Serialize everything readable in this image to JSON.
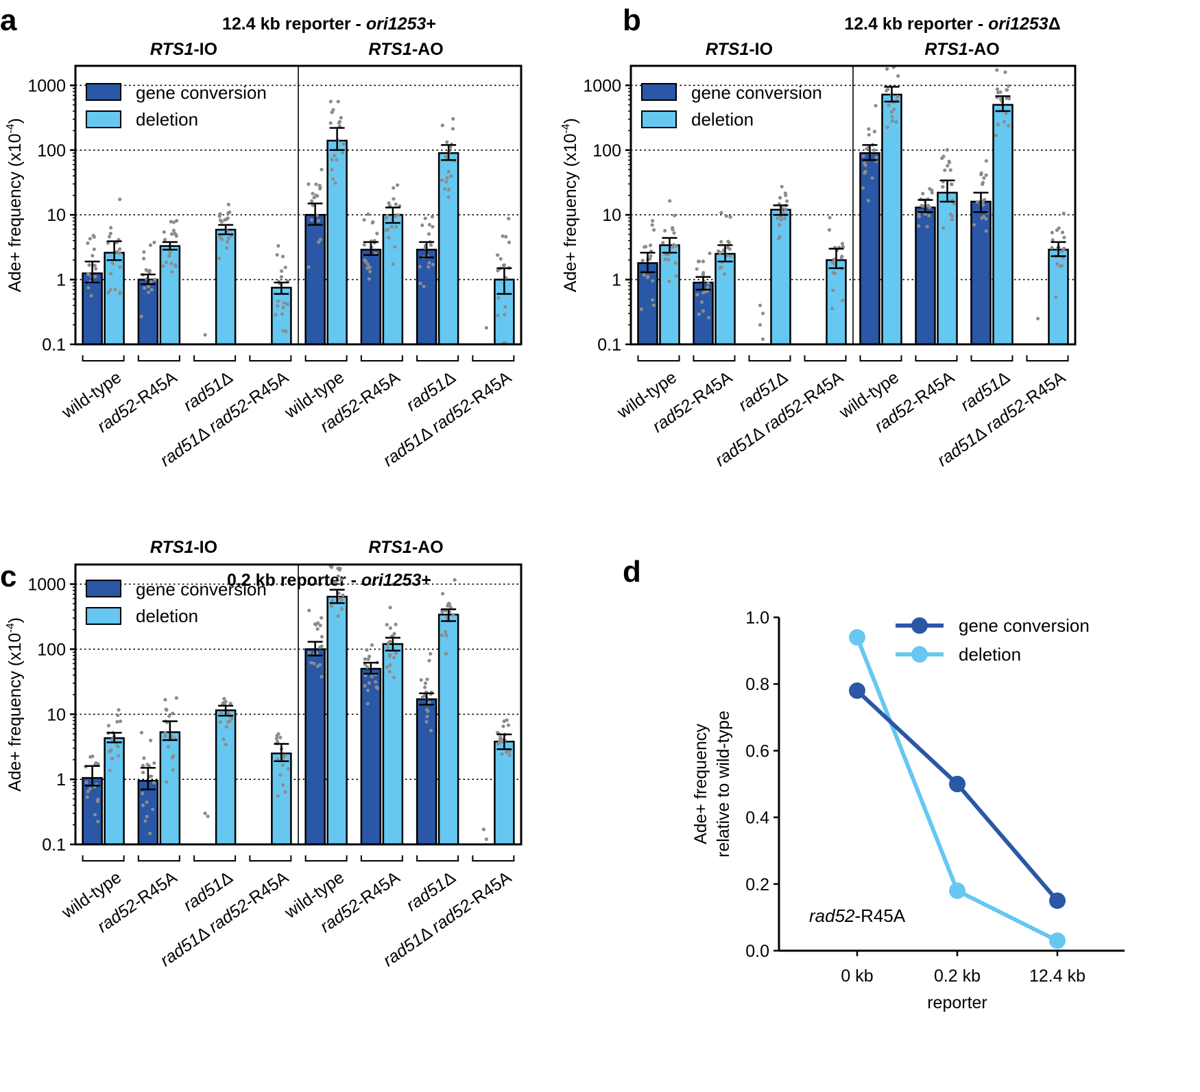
{
  "colors": {
    "gene_conversion": "#2a57a6",
    "deletion": "#66c8f0",
    "points": "#8c8c8c",
    "gridline": "#000000"
  },
  "chart_data": [
    {
      "panel": "a",
      "type": "bar",
      "title": "12.4 kb reporter - ori1253+",
      "title_plain": "12.4 kb reporter - ",
      "title_italic": "ori1253",
      "title_suffix": "+",
      "yscale": "log",
      "ylim": [
        0.1,
        2000
      ],
      "yticks": [
        "1000",
        "100",
        "10",
        "1",
        "0.1"
      ],
      "ylabel": "Ade+ frequency (x10",
      "ylabel_exp": "-4",
      "ylabel_close": ")",
      "legend": [
        "gene conversion",
        "deletion"
      ],
      "groups": [
        {
          "label_bold_italic": "RTS1",
          "label_bold": "-IO"
        },
        {
          "label_bold_italic": "RTS1",
          "label_bold": "-AO"
        }
      ],
      "categories": [
        {
          "it1": "",
          "tx1": "wild-type",
          "it2": "",
          "tx2": ""
        },
        {
          "it1": "rad52",
          "tx1": "-R45A",
          "it2": "",
          "tx2": ""
        },
        {
          "it1": "rad51",
          "tx1": "Δ",
          "it2": "",
          "tx2": ""
        },
        {
          "it1": "rad51",
          "tx1": "Δ ",
          "it2": "rad52",
          "tx2": "-R45A"
        },
        {
          "it1": "",
          "tx1": "wild-type",
          "it2": "",
          "tx2": ""
        },
        {
          "it1": "rad52",
          "tx1": "-R45A",
          "it2": "",
          "tx2": ""
        },
        {
          "it1": "rad51",
          "tx1": "Δ",
          "it2": "",
          "tx2": ""
        },
        {
          "it1": "rad51",
          "tx1": "Δ ",
          "it2": "rad52",
          "tx2": "-R45A"
        }
      ],
      "series": [
        {
          "name": "gene conversion",
          "values": [
            1.25,
            1.0,
            null,
            null,
            10,
            2.9,
            2.9,
            null
          ],
          "err_low": [
            0.9,
            0.85,
            null,
            null,
            7,
            2.4,
            2.2,
            null
          ],
          "err_high": [
            1.9,
            1.2,
            null,
            null,
            15,
            3.8,
            3.8,
            null
          ]
        },
        {
          "name": "deletion",
          "values": [
            2.6,
            3.3,
            5.9,
            0.75,
            140,
            10,
            90,
            1.0
          ],
          "err_low": [
            2.0,
            2.9,
            5.0,
            0.6,
            100,
            7.5,
            70,
            0.6
          ],
          "err_high": [
            3.9,
            3.8,
            7.0,
            0.9,
            220,
            13,
            120,
            1.5
          ]
        }
      ],
      "outliers": [
        [
          2,
          0.14
        ],
        [
          7,
          0.18
        ]
      ]
    },
    {
      "panel": "b",
      "type": "bar",
      "title": "12.4 kb reporter - ori1253Δ",
      "title_plain": "12.4 kb reporter - ",
      "title_italic": "ori1253",
      "title_suffix": "Δ",
      "yscale": "log",
      "ylim": [
        0.1,
        2000
      ],
      "yticks": [
        "1000",
        "100",
        "10",
        "1",
        "0.1"
      ],
      "ylabel": "Ade+ frequency (x10",
      "ylabel_exp": "-4",
      "ylabel_close": ")",
      "legend": [
        "gene conversion",
        "deletion"
      ],
      "groups": [
        {
          "label_bold_italic": "RTS1",
          "label_bold": "-IO"
        },
        {
          "label_bold_italic": "RTS1",
          "label_bold": "-AO"
        }
      ],
      "categories": [
        {
          "it1": "",
          "tx1": "wild-type",
          "it2": "",
          "tx2": ""
        },
        {
          "it1": "rad52",
          "tx1": "-R45A",
          "it2": "",
          "tx2": ""
        },
        {
          "it1": "rad51",
          "tx1": "Δ",
          "it2": "",
          "tx2": ""
        },
        {
          "it1": "rad51",
          "tx1": "Δ ",
          "it2": "rad52",
          "tx2": "-R45A"
        },
        {
          "it1": "",
          "tx1": "wild-type",
          "it2": "",
          "tx2": ""
        },
        {
          "it1": "rad52",
          "tx1": "-R45A",
          "it2": "",
          "tx2": ""
        },
        {
          "it1": "rad51",
          "tx1": "Δ",
          "it2": "",
          "tx2": ""
        },
        {
          "it1": "rad51",
          "tx1": "Δ ",
          "it2": "rad52",
          "tx2": "-R45A"
        }
      ],
      "series": [
        {
          "name": "gene conversion",
          "values": [
            1.8,
            0.9,
            null,
            null,
            90,
            13,
            16,
            null
          ],
          "err_low": [
            1.3,
            0.7,
            null,
            null,
            70,
            11,
            11,
            null
          ],
          "err_high": [
            2.6,
            1.1,
            null,
            null,
            120,
            17,
            22,
            null
          ]
        },
        {
          "name": "deletion",
          "values": [
            3.4,
            2.5,
            12,
            2.0,
            720,
            22,
            500,
            2.9
          ],
          "err_low": [
            2.6,
            1.9,
            10,
            1.5,
            560,
            16,
            400,
            2.3
          ],
          "err_high": [
            4.4,
            3.4,
            14,
            3.0,
            950,
            34,
            680,
            3.8
          ]
        }
      ],
      "outliers": [
        [
          2,
          0.4
        ],
        [
          2,
          0.3
        ],
        [
          2,
          0.2
        ],
        [
          2,
          0.12
        ],
        [
          7,
          0.25
        ]
      ]
    },
    {
      "panel": "c",
      "type": "bar",
      "title": "0.2 kb reporter - ori1253+",
      "title_plain": "0.2 kb reporter - ",
      "title_italic": "ori1253",
      "title_suffix": "+",
      "yscale": "log",
      "ylim": [
        0.1,
        2000
      ],
      "yticks": [
        "1000",
        "100",
        "10",
        "1",
        "0.1"
      ],
      "ylabel": "Ade+ frequency (x10",
      "ylabel_exp": "-4",
      "ylabel_close": ")",
      "legend": [
        "gene conversion",
        "deletion"
      ],
      "groups": [
        {
          "label_bold_italic": "RTS1",
          "label_bold": "-IO"
        },
        {
          "label_bold_italic": "RTS1",
          "label_bold": "-AO"
        }
      ],
      "categories": [
        {
          "it1": "",
          "tx1": "wild-type",
          "it2": "",
          "tx2": ""
        },
        {
          "it1": "rad52",
          "tx1": "-R45A",
          "it2": "",
          "tx2": ""
        },
        {
          "it1": "rad51",
          "tx1": "Δ",
          "it2": "",
          "tx2": ""
        },
        {
          "it1": "rad51",
          "tx1": "Δ ",
          "it2": "rad52",
          "tx2": "-R45A"
        },
        {
          "it1": "",
          "tx1": "wild-type",
          "it2": "",
          "tx2": ""
        },
        {
          "it1": "rad52",
          "tx1": "-R45A",
          "it2": "",
          "tx2": ""
        },
        {
          "it1": "rad51",
          "tx1": "Δ",
          "it2": "",
          "tx2": ""
        },
        {
          "it1": "rad51",
          "tx1": "Δ ",
          "it2": "rad52",
          "tx2": "-R45A"
        }
      ],
      "series": [
        {
          "name": "gene conversion",
          "values": [
            1.05,
            0.95,
            null,
            null,
            100,
            50,
            17,
            null
          ],
          "err_low": [
            0.8,
            0.7,
            null,
            null,
            80,
            42,
            14,
            null
          ],
          "err_high": [
            1.6,
            1.5,
            null,
            null,
            130,
            62,
            21,
            null
          ]
        },
        {
          "name": "deletion",
          "values": [
            4.3,
            5.3,
            11.5,
            2.5,
            640,
            120,
            340,
            3.8
          ],
          "err_low": [
            3.7,
            4.0,
            9.5,
            1.9,
            510,
            95,
            270,
            2.9
          ],
          "err_high": [
            5.2,
            7.8,
            13.5,
            3.5,
            820,
            150,
            410,
            4.9
          ]
        }
      ],
      "outliers": [
        [
          2,
          0.3
        ],
        [
          2,
          0.27
        ],
        [
          7,
          0.17
        ],
        [
          7,
          0.12
        ]
      ]
    },
    {
      "panel": "d",
      "type": "line",
      "categories": [
        "0 kb",
        "0.2 kb",
        "12.4 kb"
      ],
      "xlabel": "reporter",
      "ylabel_line1": "Ade+ frequency",
      "ylabel_line2": "relative to wild-type",
      "ylim": [
        0,
        1.0
      ],
      "yticks": [
        "1.0",
        "0.8",
        "0.6",
        "0.4",
        "0.2",
        "0.0"
      ],
      "annotation_italic": "rad52",
      "annotation_text": "-R45A",
      "legend": [
        "gene conversion",
        "deletion"
      ],
      "series": [
        {
          "name": "gene conversion",
          "values": [
            0.78,
            0.5,
            0.15
          ]
        },
        {
          "name": "deletion",
          "values": [
            0.94,
            0.18,
            0.03
          ]
        }
      ]
    }
  ],
  "panel_labels": [
    "a",
    "b",
    "c",
    "d"
  ]
}
